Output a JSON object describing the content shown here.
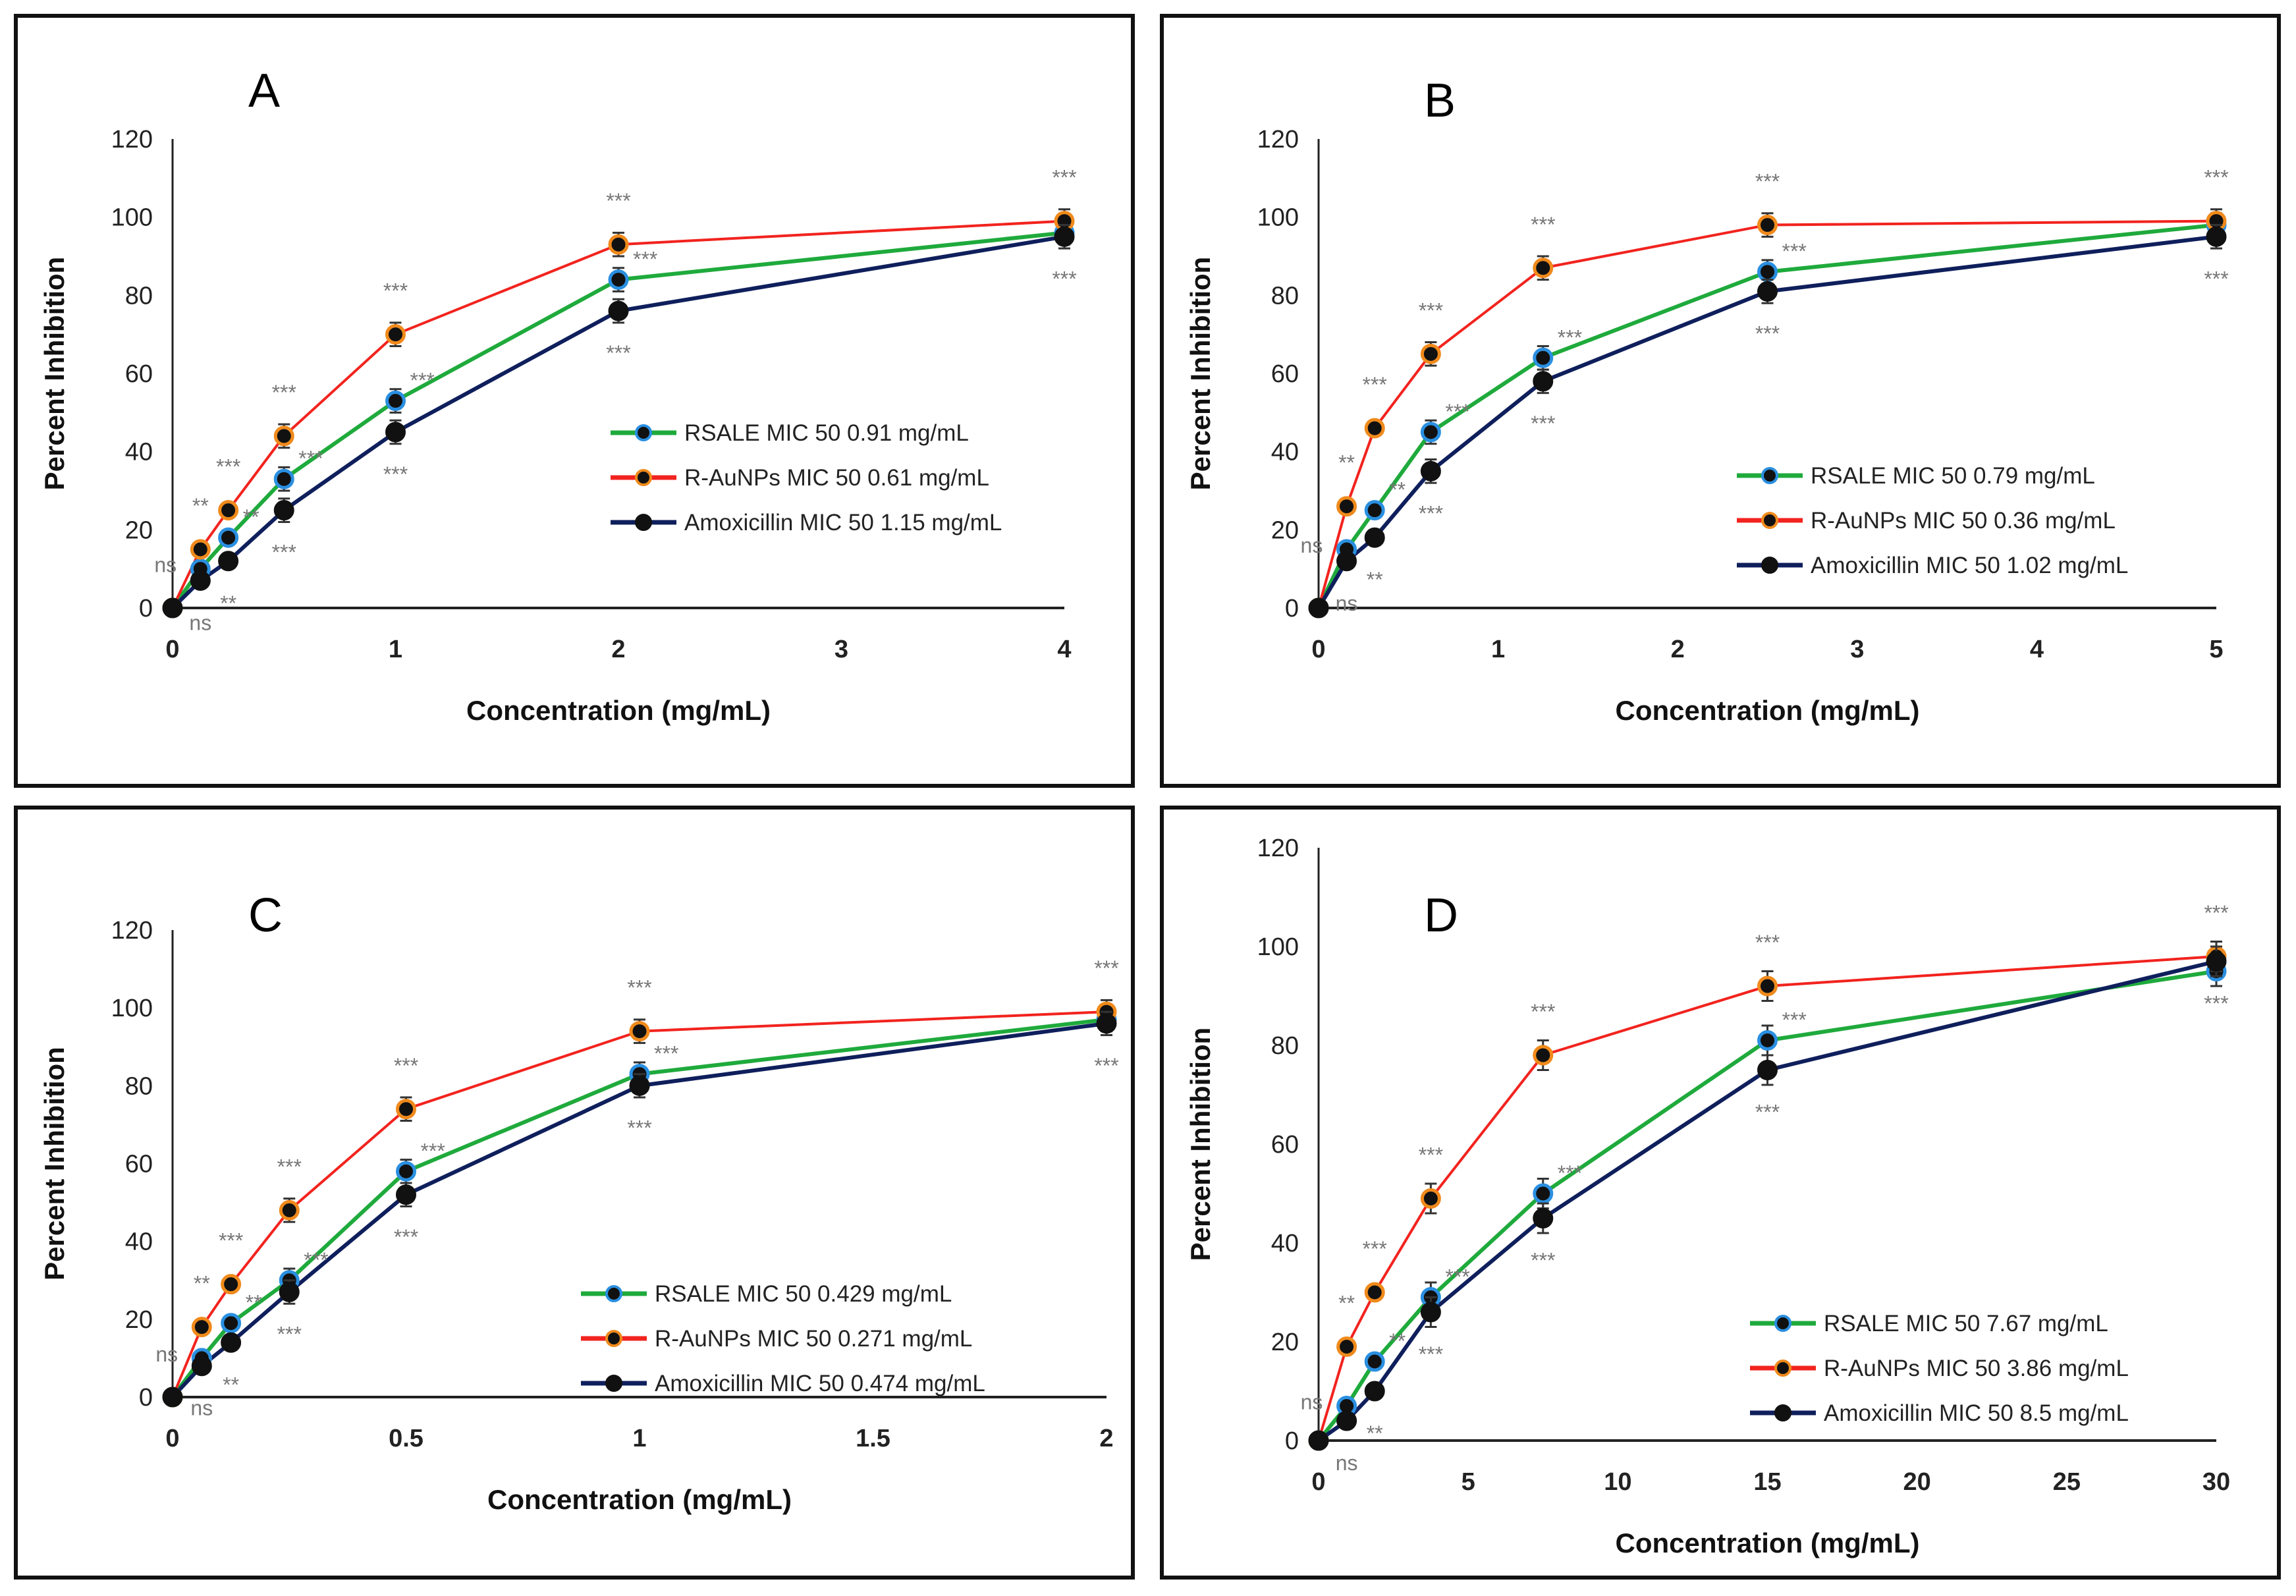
{
  "chart_data": [
    {
      "type": "line",
      "panel_label": "A",
      "xlabel": "Concentration (mg/mL)",
      "ylabel": "Percent Inhibition",
      "xlim": [
        0,
        4
      ],
      "ylim": [
        0,
        120
      ],
      "xticks": [
        "0",
        "1",
        "2",
        "3",
        "4"
      ],
      "xtick_values": [
        0,
        1,
        2,
        3,
        4
      ],
      "yticks": [
        "0",
        "20",
        "40",
        "60",
        "80",
        "100",
        "120"
      ],
      "x": [
        0,
        0.125,
        0.25,
        0.5,
        1,
        2,
        4
      ],
      "legend": "bottom-right",
      "series": [
        {
          "name": "RSALE MIC 50 0.91 mg/mL",
          "color": "#1faa3c",
          "marker_edge": "#2a8fe0",
          "values": [
            0,
            10,
            18,
            33,
            53,
            84,
            96
          ],
          "sig": [
            "",
            "ns",
            "**",
            "***",
            "***",
            "***",
            ""
          ],
          "sig_pos": "right"
        },
        {
          "name": "R-AuNPs MIC 50 0.61 mg/mL",
          "color": "#f2231e",
          "marker_edge": "#f08a1c",
          "values": [
            0,
            15,
            25,
            44,
            70,
            93,
            99
          ],
          "sig": [
            "",
            "**",
            "***",
            "***",
            "***",
            "***",
            "***"
          ],
          "sig_pos": "above"
        },
        {
          "name": "Amoxicillin MIC 50 1.15 mg/mL",
          "color": "#0f1f5c",
          "marker_edge": "#111111",
          "values": [
            0,
            7,
            12,
            25,
            45,
            76,
            95
          ],
          "sig": [
            "",
            "ns",
            "**",
            "***",
            "***",
            "***",
            "***"
          ],
          "sig_pos": "below"
        }
      ]
    },
    {
      "type": "line",
      "panel_label": "B",
      "xlabel": "Concentration (mg/mL)",
      "ylabel": "Percent Inhibition",
      "xlim": [
        0,
        5
      ],
      "ylim": [
        0,
        120
      ],
      "xticks": [
        "0",
        "1",
        "2",
        "3",
        "4",
        "5"
      ],
      "xtick_values": [
        0,
        1,
        2,
        3,
        4,
        5
      ],
      "yticks": [
        "0",
        "20",
        "40",
        "60",
        "80",
        "100",
        "120"
      ],
      "x": [
        0,
        0.156,
        0.3125,
        0.625,
        1.25,
        2.5,
        5
      ],
      "legend": "bottom-right",
      "series": [
        {
          "name": "RSALE MIC 50 0.79 mg/mL",
          "color": "#1faa3c",
          "marker_edge": "#2a8fe0",
          "values": [
            0,
            15,
            25,
            45,
            64,
            86,
            98
          ],
          "sig": [
            "",
            "ns",
            "**",
            "***",
            "***",
            "***",
            ""
          ],
          "sig_pos": "right"
        },
        {
          "name": "R-AuNPs MIC 50 0.36 mg/mL",
          "color": "#f2231e",
          "marker_edge": "#f08a1c",
          "values": [
            0,
            26,
            46,
            65,
            87,
            98,
            99
          ],
          "sig": [
            "",
            "**",
            "***",
            "***",
            "***",
            "***",
            "***"
          ],
          "sig_pos": "above"
        },
        {
          "name": "Amoxicillin MIC 50 1.02 mg/mL",
          "color": "#0f1f5c",
          "marker_edge": "#111111",
          "values": [
            0,
            12,
            18,
            35,
            58,
            81,
            95
          ],
          "sig": [
            "",
            "ns",
            "**",
            "***",
            "***",
            "***",
            "***"
          ],
          "sig_pos": "below"
        }
      ]
    },
    {
      "type": "line",
      "panel_label": "C",
      "xlabel": "Concentration (mg/mL)",
      "ylabel": "Percent Inhibition",
      "xlim": [
        0,
        2
      ],
      "ylim": [
        0,
        120
      ],
      "xticks": [
        "0",
        "0.5",
        "1",
        "1.5",
        "2"
      ],
      "xtick_values": [
        0,
        0.5,
        1,
        1.5,
        2
      ],
      "yticks": [
        "0",
        "20",
        "40",
        "60",
        "80",
        "100",
        "120"
      ],
      "x": [
        0,
        0.0625,
        0.125,
        0.25,
        0.5,
        1,
        2
      ],
      "legend": "bottom-right",
      "series": [
        {
          "name": "RSALE MIC 50 0.429 mg/mL",
          "color": "#1faa3c",
          "marker_edge": "#2a8fe0",
          "values": [
            0,
            10,
            19,
            30,
            58,
            83,
            97
          ],
          "sig": [
            "",
            "ns",
            "**",
            "***",
            "***",
            "***",
            ""
          ],
          "sig_pos": "right"
        },
        {
          "name": "R-AuNPs MIC 50 0.271 mg/mL",
          "color": "#f2231e",
          "marker_edge": "#f08a1c",
          "values": [
            0,
            18,
            29,
            48,
            74,
            94,
            99
          ],
          "sig": [
            "",
            "**",
            "***",
            "***",
            "***",
            "***",
            "***"
          ],
          "sig_pos": "above"
        },
        {
          "name": "Amoxicillin MIC 50 0.474 mg/mL",
          "color": "#0f1f5c",
          "marker_edge": "#111111",
          "values": [
            0,
            8,
            14,
            27,
            52,
            80,
            96
          ],
          "sig": [
            "",
            "ns",
            "**",
            "***",
            "***",
            "***",
            "***"
          ],
          "sig_pos": "below"
        }
      ]
    },
    {
      "type": "line",
      "panel_label": "D",
      "xlabel": "Concentration (mg/mL)",
      "ylabel": "Percent Inhibition",
      "xlim": [
        0,
        30
      ],
      "ylim": [
        0,
        120
      ],
      "xticks": [
        "0",
        "5",
        "10",
        "15",
        "20",
        "25",
        "30"
      ],
      "xtick_values": [
        0,
        5,
        10,
        15,
        20,
        25,
        30
      ],
      "yticks": [
        "0",
        "20",
        "40",
        "60",
        "80",
        "100",
        "120"
      ],
      "x": [
        0,
        0.9375,
        1.875,
        3.75,
        7.5,
        15,
        30
      ],
      "legend": "bottom-right",
      "series": [
        {
          "name": "RSALE  MIC 50 7.67 mg/mL",
          "color": "#1faa3c",
          "marker_edge": "#2a8fe0",
          "values": [
            0,
            7,
            16,
            29,
            50,
            81,
            95
          ],
          "sig": [
            "",
            "ns",
            "**",
            "***",
            "***",
            "***",
            ""
          ],
          "sig_pos": "right"
        },
        {
          "name": " R-AuNPs MIC 50 3.86 mg/mL",
          "color": "#f2231e",
          "marker_edge": "#f08a1c",
          "values": [
            0,
            19,
            30,
            49,
            78,
            92,
            98
          ],
          "sig": [
            "",
            "**",
            "***",
            "***",
            "***",
            "***",
            "***"
          ],
          "sig_pos": "above"
        },
        {
          "name": "Amoxicillin MIC 50 8.5 mg/mL",
          "color": "#0f1f5c",
          "marker_edge": "#111111",
          "values": [
            0,
            4,
            10,
            26,
            45,
            75,
            97
          ],
          "sig": [
            "",
            "ns",
            "**",
            "***",
            "***",
            "***",
            "***"
          ],
          "sig_pos": "below"
        }
      ]
    }
  ]
}
